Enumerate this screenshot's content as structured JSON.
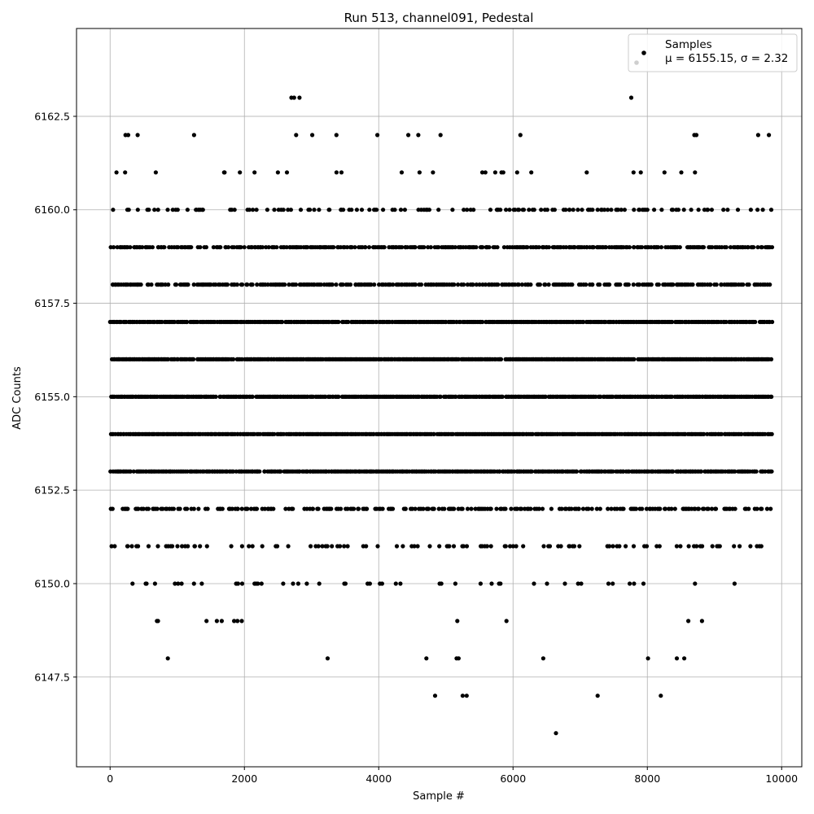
{
  "chart_data": {
    "type": "scatter",
    "title": "Run 513, channel091, Pedestal",
    "xlabel": "Sample #",
    "ylabel": "ADC Counts",
    "xlim": [
      -500,
      10300
    ],
    "ylim": [
      6145.1,
      6164.85
    ],
    "x_ticks": [
      0,
      2000,
      4000,
      6000,
      8000,
      10000
    ],
    "x_tick_labels": [
      "0",
      "2000",
      "4000",
      "6000",
      "8000",
      "10000"
    ],
    "y_ticks": [
      6147.5,
      6150.0,
      6152.5,
      6155.0,
      6157.5,
      6160.0,
      6162.5
    ],
    "y_tick_labels": [
      "6147.5",
      "6150.0",
      "6152.5",
      "6155.0",
      "6157.5",
      "6160.0",
      "6162.5"
    ],
    "grid": true,
    "legend": {
      "placement": "top-right",
      "entries": [
        {
          "label": "Samples",
          "stats": "μ = 6155.15, σ = 2.32",
          "marker_color": "#000000"
        }
      ]
    },
    "marker_color": "#000000",
    "sample_range": [
      0,
      9840
    ],
    "level_counts_relative": {
      "6146": 0.001,
      "6147": 0.004,
      "6148": 0.008,
      "6149": 0.035,
      "6150": 0.09,
      "6151": 0.26,
      "6152": 0.48,
      "6153": 0.97,
      "6154": 1.0,
      "6155": 1.0,
      "6156": 1.0,
      "6157": 1.0,
      "6158": 0.7,
      "6159": 0.72,
      "6160": 0.3,
      "6161": 0.06,
      "6162": 0.015,
      "6163": 0.002
    },
    "sparse_points": [
      [
        6640,
        6146
      ],
      [
        4840,
        6147
      ],
      [
        5250,
        6147
      ],
      [
        5310,
        6147
      ],
      [
        7260,
        6147
      ],
      [
        8200,
        6147
      ],
      [
        860,
        6148
      ],
      [
        3240,
        6148
      ],
      [
        4710,
        6148
      ],
      [
        5160,
        6148
      ],
      [
        5190,
        6148
      ],
      [
        6450,
        6148
      ],
      [
        8010,
        6148
      ],
      [
        8440,
        6148
      ],
      [
        8550,
        6148
      ],
      [
        2700,
        6163
      ],
      [
        2740,
        6163
      ],
      [
        2820,
        6163
      ],
      [
        7760,
        6163
      ],
      [
        230,
        6162
      ],
      [
        270,
        6162
      ],
      [
        410,
        6162
      ],
      [
        1250,
        6162
      ],
      [
        2770,
        6162
      ],
      [
        3010,
        6162
      ],
      [
        3370,
        6162
      ],
      [
        3980,
        6162
      ],
      [
        4440,
        6162
      ],
      [
        4590,
        6162
      ],
      [
        4920,
        6162
      ],
      [
        6110,
        6162
      ],
      [
        8700,
        6162
      ],
      [
        8730,
        6162
      ],
      [
        9650,
        6162
      ],
      [
        9810,
        6162
      ]
    ]
  }
}
